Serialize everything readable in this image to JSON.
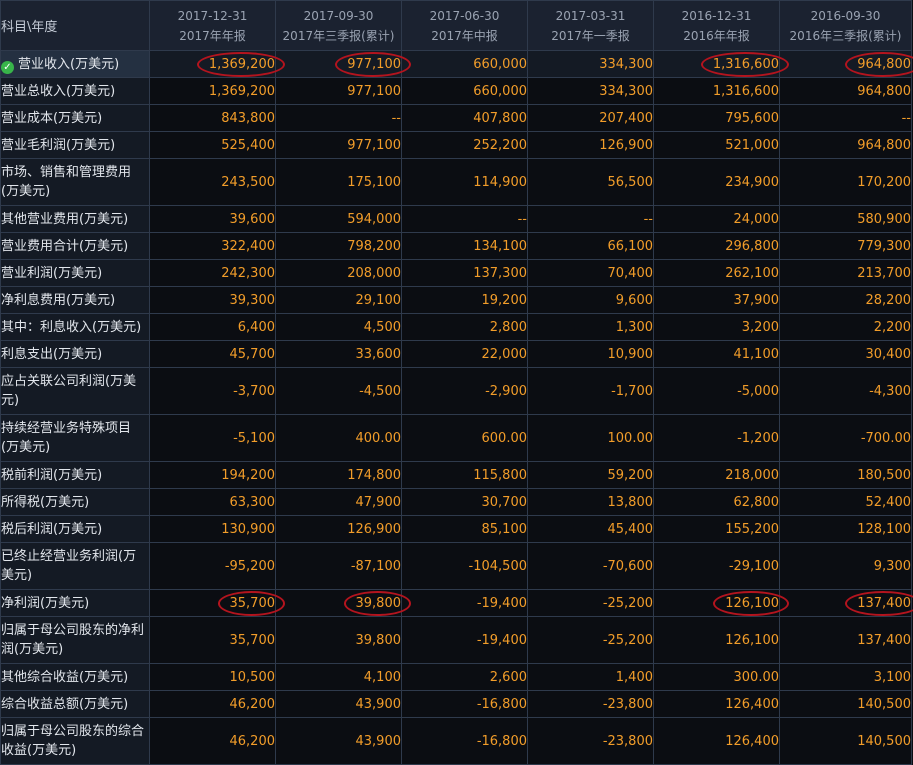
{
  "header": {
    "corner_label": "科目\\年度",
    "columns": [
      {
        "date": "2017-12-31",
        "report": "2017年年报"
      },
      {
        "date": "2017-09-30",
        "report": "2017年三季报(累计)"
      },
      {
        "date": "2017-06-30",
        "report": "2017年中报"
      },
      {
        "date": "2017-03-31",
        "report": "2017年一季报"
      },
      {
        "date": "2016-12-31",
        "report": "2016年年报"
      },
      {
        "date": "2016-09-30",
        "report": "2016年三季报(累计)"
      }
    ]
  },
  "rows": [
    {
      "label": "营业收入(万美元)",
      "values": [
        "1,369,200",
        "977,100",
        "660,000",
        "334,300",
        "1,316,600",
        "964,800"
      ]
    },
    {
      "label": "营业总收入(万美元)",
      "values": [
        "1,369,200",
        "977,100",
        "660,000",
        "334,300",
        "1,316,600",
        "964,800"
      ]
    },
    {
      "label": "营业成本(万美元)",
      "values": [
        "843,800",
        "--",
        "407,800",
        "207,400",
        "795,600",
        "--"
      ]
    },
    {
      "label": "营业毛利润(万美元)",
      "values": [
        "525,400",
        "977,100",
        "252,200",
        "126,900",
        "521,000",
        "964,800"
      ]
    },
    {
      "label": "市场、销售和管理费用(万美元)",
      "values": [
        "243,500",
        "175,100",
        "114,900",
        "56,500",
        "234,900",
        "170,200"
      ]
    },
    {
      "label": "其他营业费用(万美元)",
      "values": [
        "39,600",
        "594,000",
        "--",
        "--",
        "24,000",
        "580,900"
      ]
    },
    {
      "label": "营业费用合计(万美元)",
      "values": [
        "322,400",
        "798,200",
        "134,100",
        "66,100",
        "296,800",
        "779,300"
      ]
    },
    {
      "label": "营业利润(万美元)",
      "values": [
        "242,300",
        "208,000",
        "137,300",
        "70,400",
        "262,100",
        "213,700"
      ]
    },
    {
      "label": "净利息费用(万美元)",
      "values": [
        "39,300",
        "29,100",
        "19,200",
        "9,600",
        "37,900",
        "28,200"
      ]
    },
    {
      "label": "其中：利息收入(万美元)",
      "values": [
        "6,400",
        "4,500",
        "2,800",
        "1,300",
        "3,200",
        "2,200"
      ]
    },
    {
      "label": "利息支出(万美元)",
      "values": [
        "45,700",
        "33,600",
        "22,000",
        "10,900",
        "41,100",
        "30,400"
      ]
    },
    {
      "label": "应占关联公司利润(万美元)",
      "values": [
        "-3,700",
        "-4,500",
        "-2,900",
        "-1,700",
        "-5,000",
        "-4,300"
      ]
    },
    {
      "label": "持续经营业务特殊项目(万美元)",
      "values": [
        "-5,100",
        "400.00",
        "600.00",
        "100.00",
        "-1,200",
        "-700.00"
      ]
    },
    {
      "label": "税前利润(万美元)",
      "values": [
        "194,200",
        "174,800",
        "115,800",
        "59,200",
        "218,000",
        "180,500"
      ]
    },
    {
      "label": "所得税(万美元)",
      "values": [
        "63,300",
        "47,900",
        "30,700",
        "13,800",
        "62,800",
        "52,400"
      ]
    },
    {
      "label": "税后利润(万美元)",
      "values": [
        "130,900",
        "126,900",
        "85,100",
        "45,400",
        "155,200",
        "128,100"
      ]
    },
    {
      "label": "已终止经营业务利润(万美元)",
      "values": [
        "-95,200",
        "-87,100",
        "-104,500",
        "-70,600",
        "-29,100",
        "9,300"
      ]
    },
    {
      "label": "净利润(万美元)",
      "values": [
        "35,700",
        "39,800",
        "-19,400",
        "-25,200",
        "126,100",
        "137,400"
      ]
    },
    {
      "label": "归属于母公司股东的净利润(万美元)",
      "values": [
        "35,700",
        "39,800",
        "-19,400",
        "-25,200",
        "126,100",
        "137,400"
      ]
    },
    {
      "label": "其他综合收益(万美元)",
      "values": [
        "10,500",
        "4,100",
        "2,600",
        "1,400",
        "300.00",
        "3,100"
      ]
    },
    {
      "label": "综合收益总额(万美元)",
      "values": [
        "46,200",
        "43,900",
        "-16,800",
        "-23,800",
        "126,400",
        "140,500"
      ]
    },
    {
      "label": "归属于母公司股东的综合收益(万美元)",
      "values": [
        "46,200",
        "43,900",
        "-16,800",
        "-23,800",
        "126,400",
        "140,500"
      ]
    }
  ],
  "highlighted": {
    "revenue_row": 0,
    "net_profit_row": 17,
    "circled_columns": [
      0,
      1,
      4,
      5
    ]
  },
  "selected_row_icon": "check-circle-icon",
  "colors": {
    "value_text": "#f29d2a",
    "label_text": "#e2e6ec",
    "header_text": "#9aa3b2",
    "circle_annotation": "#b4141e",
    "check_icon": "#38b44a"
  }
}
